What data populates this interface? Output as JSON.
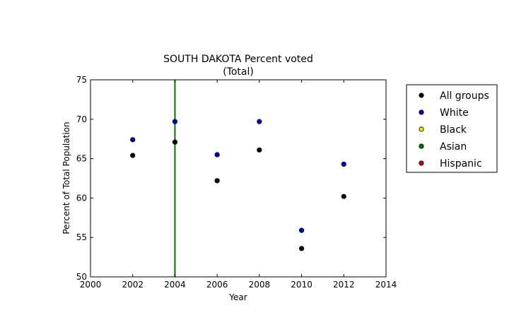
{
  "chart_data": {
    "type": "scatter",
    "title": "SOUTH DAKOTA Percent voted",
    "subtitle": "(Total)",
    "xlabel": "Year",
    "ylabel": "Percent of Total Population",
    "xlim": [
      2000,
      2014
    ],
    "ylim": [
      50,
      75
    ],
    "xticks": [
      "2000",
      "2002",
      "2004",
      "2006",
      "2008",
      "2010",
      "2012",
      "2014"
    ],
    "yticks": [
      "50",
      "55",
      "60",
      "65",
      "70",
      "75"
    ],
    "grid": false,
    "legend_position": "outside-right",
    "series": [
      {
        "name": "All groups",
        "color": "#000000",
        "points": [
          {
            "x": 2002,
            "y": 65.4
          },
          {
            "x": 2004,
            "y": 67.1
          },
          {
            "x": 2006,
            "y": 62.2
          },
          {
            "x": 2008,
            "y": 66.1
          },
          {
            "x": 2010,
            "y": 53.6
          },
          {
            "x": 2012,
            "y": 60.2
          }
        ]
      },
      {
        "name": "White",
        "color": "#0000cc",
        "points": [
          {
            "x": 2002,
            "y": 67.4
          },
          {
            "x": 2004,
            "y": 69.7
          },
          {
            "x": 2006,
            "y": 65.5
          },
          {
            "x": 2008,
            "y": 69.7
          },
          {
            "x": 2010,
            "y": 55.9
          },
          {
            "x": 2012,
            "y": 64.3
          }
        ]
      },
      {
        "name": "Black",
        "color": "#ffdd00",
        "points": []
      },
      {
        "name": "Asian",
        "color": "#007700",
        "points": [],
        "vertical_line": {
          "x": 2004,
          "y_from": 50,
          "y_to": 75
        }
      },
      {
        "name": "Hispanic",
        "color": "#cc0000",
        "points": []
      }
    ]
  }
}
